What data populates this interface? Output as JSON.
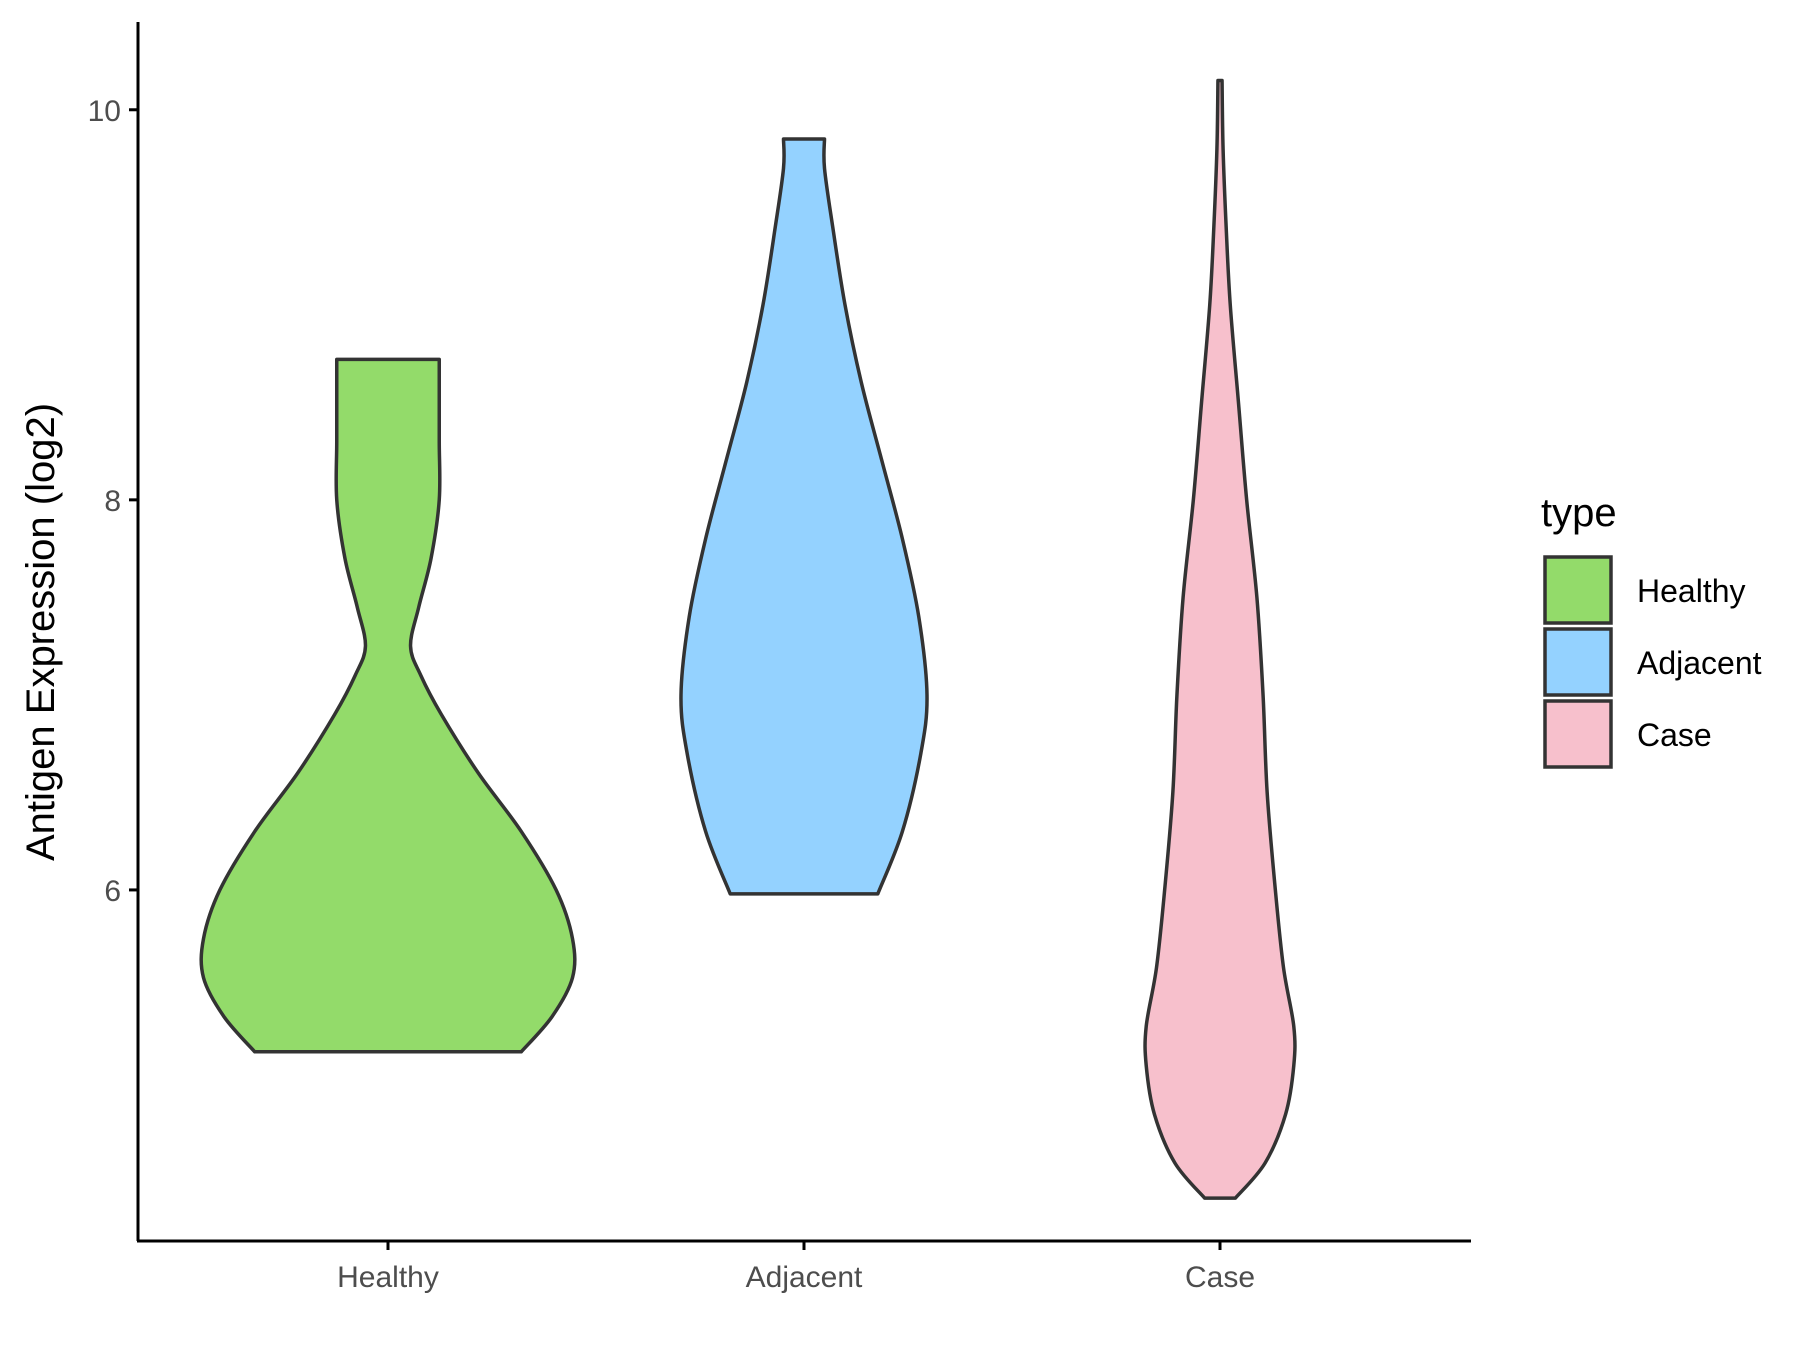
{
  "chart_data": {
    "type": "violin",
    "ylabel": "Antigen Expression (log2)",
    "xlabel": "",
    "categories": [
      "Healthy",
      "Adjacent",
      "Case"
    ],
    "ylim": [
      4.2,
      10.45
    ],
    "yticks": [
      6,
      8,
      10
    ],
    "grid": false,
    "legend": {
      "title": "type",
      "position": "right",
      "entries": [
        "Healthy",
        "Adjacent",
        "Case"
      ]
    },
    "series": [
      {
        "category": "Healthy",
        "color": "#93DB6A",
        "min": 5.17,
        "max": 8.72,
        "density_profile": [
          [
            5.17,
            0.65
          ],
          [
            5.35,
            0.8
          ],
          [
            5.55,
            0.9
          ],
          [
            5.75,
            0.9
          ],
          [
            6.0,
            0.82
          ],
          [
            6.3,
            0.65
          ],
          [
            6.6,
            0.44
          ],
          [
            6.9,
            0.26
          ],
          [
            7.1,
            0.16
          ],
          [
            7.25,
            0.11
          ],
          [
            7.45,
            0.15
          ],
          [
            7.7,
            0.21
          ],
          [
            8.0,
            0.25
          ],
          [
            8.3,
            0.25
          ],
          [
            8.6,
            0.25
          ],
          [
            8.72,
            0.25
          ]
        ]
      },
      {
        "category": "Adjacent",
        "color": "#94D2FF",
        "min": 5.98,
        "max": 9.85,
        "density_profile": [
          [
            5.98,
            0.36
          ],
          [
            6.3,
            0.48
          ],
          [
            6.7,
            0.57
          ],
          [
            7.0,
            0.6
          ],
          [
            7.4,
            0.56
          ],
          [
            7.8,
            0.48
          ],
          [
            8.2,
            0.38
          ],
          [
            8.6,
            0.28
          ],
          [
            9.0,
            0.2
          ],
          [
            9.4,
            0.14
          ],
          [
            9.7,
            0.1
          ],
          [
            9.85,
            0.1
          ]
        ]
      },
      {
        "category": "Case",
        "color": "#F7C0CC",
        "min": 4.42,
        "max": 10.15,
        "density_profile": [
          [
            4.42,
            0.075
          ],
          [
            4.6,
            0.22
          ],
          [
            4.85,
            0.32
          ],
          [
            5.1,
            0.36
          ],
          [
            5.3,
            0.36
          ],
          [
            5.6,
            0.31
          ],
          [
            6.0,
            0.27
          ],
          [
            6.5,
            0.23
          ],
          [
            7.0,
            0.21
          ],
          [
            7.5,
            0.18
          ],
          [
            8.0,
            0.13
          ],
          [
            8.5,
            0.09
          ],
          [
            9.0,
            0.05
          ],
          [
            9.4,
            0.03
          ],
          [
            9.8,
            0.015
          ],
          [
            10.15,
            0.01
          ]
        ]
      }
    ]
  }
}
